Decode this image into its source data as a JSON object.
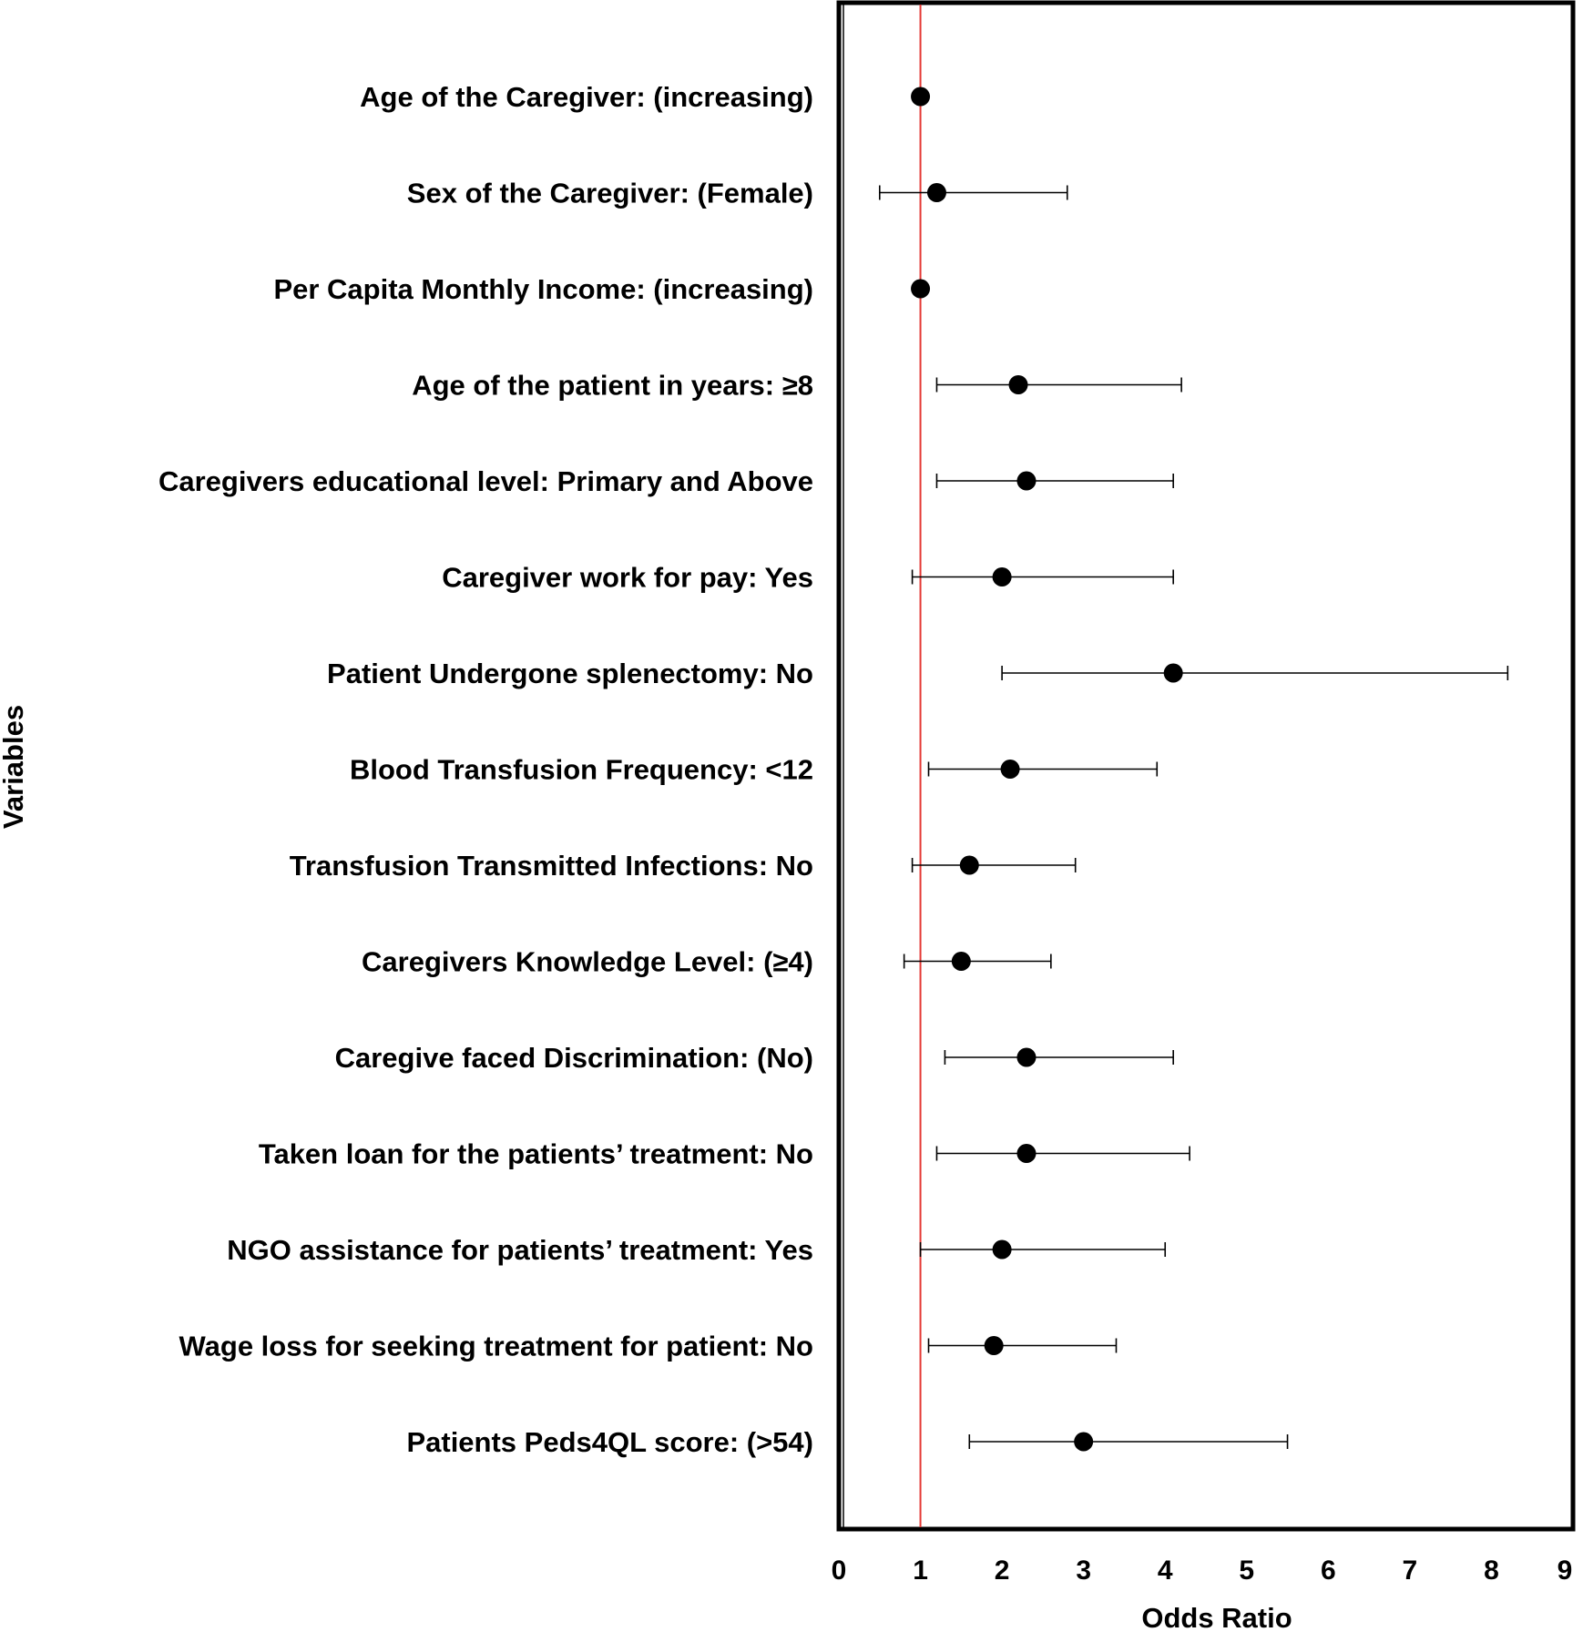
{
  "chart_data": {
    "type": "scatter",
    "subtype": "forest-plot",
    "xlabel": "Odds Ratio",
    "ylabel": "Variables",
    "xlim": [
      0,
      9
    ],
    "xticks": [
      "0",
      "1",
      "2",
      "3",
      "4",
      "5",
      "6",
      "7",
      "8",
      "9"
    ],
    "reference_line": {
      "x": 1,
      "color": "#e53935"
    },
    "point_color": "#000000",
    "grid": false,
    "rows": [
      {
        "label": "Age of the Caregiver: (increasing)",
        "or": 1.0,
        "lower": 1.0,
        "upper": 1.0
      },
      {
        "label": "Sex of the Caregiver: (Female)",
        "or": 1.2,
        "lower": 0.5,
        "upper": 2.8
      },
      {
        "label": "Per Capita Monthly Income: (increasing)",
        "or": 1.0,
        "lower": 1.0,
        "upper": 1.0
      },
      {
        "label": "Age of the patient in years: ≥8",
        "or": 2.2,
        "lower": 1.2,
        "upper": 4.2
      },
      {
        "label": "Caregivers educational level: Primary and Above",
        "or": 2.3,
        "lower": 1.2,
        "upper": 4.1
      },
      {
        "label": "Caregiver work for pay: Yes",
        "or": 2.0,
        "lower": 0.9,
        "upper": 4.1
      },
      {
        "label": "Patient Undergone splenectomy: No",
        "or": 4.1,
        "lower": 2.0,
        "upper": 8.2
      },
      {
        "label": "Blood Transfusion Frequency: <12",
        "or": 2.1,
        "lower": 1.1,
        "upper": 3.9
      },
      {
        "label": "Transfusion Transmitted Infections: No",
        "or": 1.6,
        "lower": 0.9,
        "upper": 2.9
      },
      {
        "label": "Caregivers Knowledge Level: (≥4)",
        "or": 1.5,
        "lower": 0.8,
        "upper": 2.6
      },
      {
        "label": "Caregive faced Discrimination: (No)",
        "or": 2.3,
        "lower": 1.3,
        "upper": 4.1
      },
      {
        "label": "Taken loan for the patients’ treatment: No",
        "or": 2.3,
        "lower": 1.2,
        "upper": 4.3
      },
      {
        "label": "NGO assistance for patients’ treatment: Yes",
        "or": 2.0,
        "lower": 1.0,
        "upper": 4.0
      },
      {
        "label": "Wage loss for seeking treatment for patient: No",
        "or": 1.9,
        "lower": 1.1,
        "upper": 3.4
      },
      {
        "label": "Patients Peds4QL score: (>54)",
        "or": 3.0,
        "lower": 1.6,
        "upper": 5.5
      }
    ]
  }
}
